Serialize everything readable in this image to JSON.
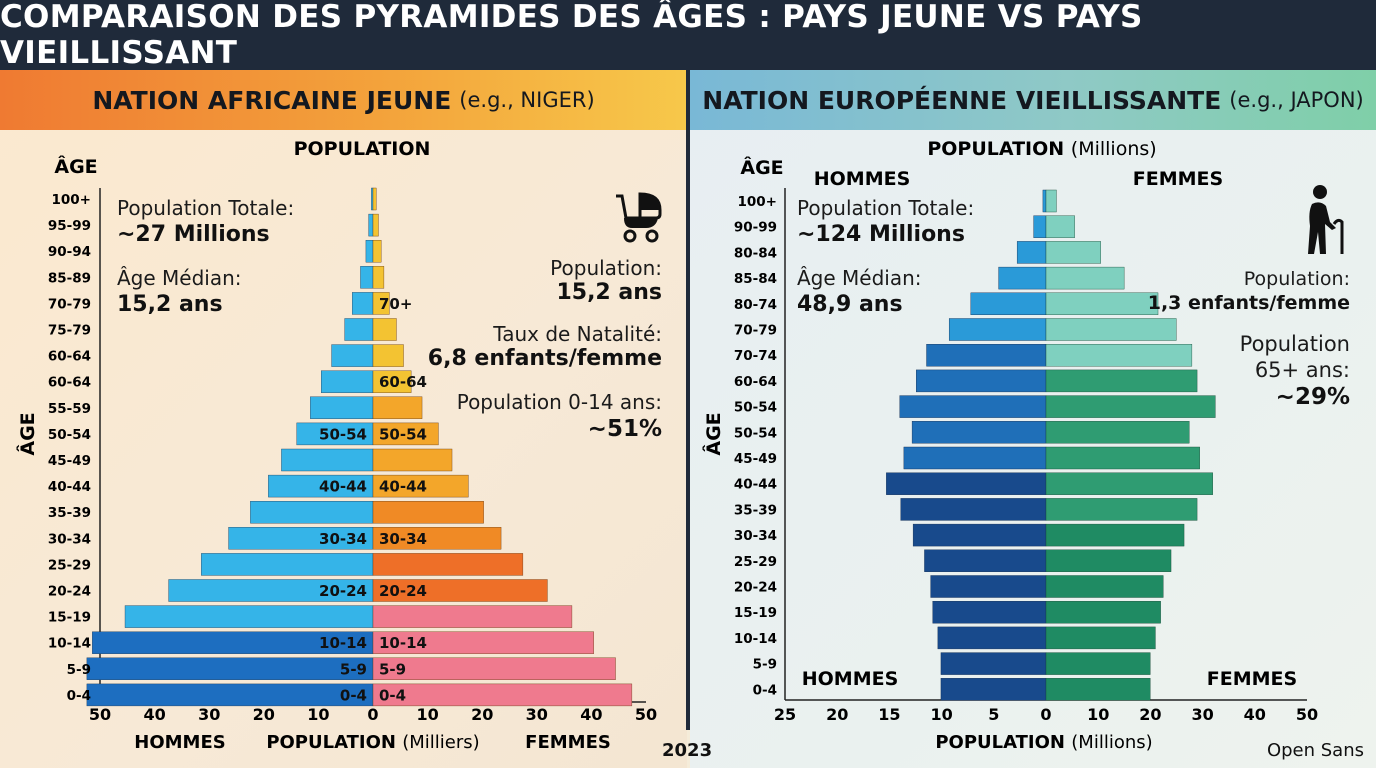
{
  "header": {
    "title": "COMPARAISON DES PYRAMIDES DES ÂGES : PAYS JEUNE VS PAYS VIEILLISSANT"
  },
  "footer": {
    "year": "2023",
    "credit": "Open Sans"
  },
  "left": {
    "title": "NATION AFRICAINE JEUNE",
    "subtitle": "(e.g., NIGER)",
    "stats": {
      "total_label": "Population Totale:",
      "total_value": "~27 Millions",
      "median_label": "Âge Médian:",
      "median_value": "15,2 ans",
      "pop_label": "Population:",
      "pop_value": "15,2 ans",
      "birth_label": "Taux de Natalité:",
      "birth_value": "6,8 enfants/femme",
      "young_label": "Population 0-14 ans:",
      "young_value": "~51%"
    },
    "icon": "baby-stroller-icon"
  },
  "right": {
    "title": "NATION EUROPÉENNE VIEILLISSANTE",
    "subtitle": "(e.g., JAPON)",
    "stats": {
      "total_label": "Population Totale:",
      "total_value": "~124 Millions",
      "median_label": "Âge Médian:",
      "median_value": "48,9 ans",
      "pop_label": "Population:",
      "pop_value": "1,3 enfants/femme",
      "old_label_1": "Population",
      "old_label_2": "65+ ans:",
      "old_value": "~29%"
    },
    "icon": "elderly-person-icon"
  },
  "chart_data": [
    {
      "type": "bar",
      "orientation": "population-pyramid",
      "title": "POPULATION",
      "xlabel_main": "POPULATION",
      "xlabel_unit": "(Milliers)",
      "ylabel": "ÂGE",
      "age_axis_title": "ÂGE",
      "left_group": "HOMMES",
      "right_group": "FEMMES",
      "xlim": [
        -50,
        50
      ],
      "xticks": [
        "50",
        "40",
        "30",
        "20",
        "10",
        "0",
        "10",
        "20",
        "30",
        "40",
        "50"
      ],
      "categories": [
        "100+",
        "95-99",
        "90-94",
        "85-89",
        "70-79",
        "75-79",
        "60-64",
        "60-64",
        "55-59",
        "50-54",
        "45-49",
        "40-44",
        "35-39",
        "30-34",
        "25-29",
        "20-24",
        "15-19",
        "10-14",
        "5-9",
        "0-4"
      ],
      "series": [
        {
          "name": "HOMMES",
          "values": [
            0.3,
            0.8,
            1.3,
            2.3,
            3.8,
            5.2,
            7.6,
            9.5,
            11.5,
            14,
            16.8,
            19.2,
            22.5,
            26.5,
            31.5,
            37.5,
            45.5,
            51.5,
            52.5,
            52.5
          ]
        },
        {
          "name": "FEMMES",
          "values": [
            0.6,
            1,
            1.5,
            2,
            3,
            4.3,
            5.6,
            7,
            9,
            12,
            14.5,
            17.5,
            20.3,
            23.5,
            27.5,
            32,
            36.5,
            40.5,
            44.5,
            47.5
          ]
        }
      ],
      "bar_labels": [
        {
          "category_index": 4,
          "side": "right",
          "text": "70+"
        },
        {
          "category_index": 7,
          "side": "right",
          "text": "60-64"
        },
        {
          "category_index": 9,
          "side": "left",
          "text": "50-54"
        },
        {
          "category_index": 9,
          "side": "right",
          "text": "50-54"
        },
        {
          "category_index": 11,
          "side": "left",
          "text": "40-44"
        },
        {
          "category_index": 11,
          "side": "right",
          "text": "40-44"
        },
        {
          "category_index": 13,
          "side": "left",
          "text": "30-34"
        },
        {
          "category_index": 13,
          "side": "right",
          "text": "30-34"
        },
        {
          "category_index": 15,
          "side": "left",
          "text": "20-24"
        },
        {
          "category_index": 15,
          "side": "right",
          "text": "20-24"
        },
        {
          "category_index": 17,
          "side": "left",
          "text": "10-14"
        },
        {
          "category_index": 17,
          "side": "right",
          "text": "10-14"
        },
        {
          "category_index": 18,
          "side": "left",
          "text": "5-9"
        },
        {
          "category_index": 18,
          "side": "right",
          "text": "5-9"
        },
        {
          "category_index": 19,
          "side": "left",
          "text": "0-4"
        },
        {
          "category_index": 19,
          "side": "right",
          "text": "0-4"
        }
      ],
      "colors": {
        "male_light": "#35b4e8",
        "male_dark": "#1d6ec0",
        "female": [
          "#f3c332",
          "#f3a62a",
          "#f08a25",
          "#ee6f28",
          "#ef7a8e"
        ]
      },
      "grid": false
    },
    {
      "type": "bar",
      "orientation": "population-pyramid",
      "title": "POPULATION",
      "title_unit": "(Millions)",
      "xlabel_main": "POPULATION",
      "xlabel_unit": "(Millions)",
      "ylabel": "ÂGE",
      "age_axis_title": "ÂGE",
      "left_group": "HOMMES",
      "right_group": "FEMMES",
      "bottom_left_group": "HOMMES",
      "bottom_right_group": "FEMMES",
      "xlim": [
        -25,
        50
      ],
      "xticks": [
        "25",
        "20",
        "15",
        "10",
        "5",
        "0",
        "10",
        "20",
        "30",
        "40",
        "50"
      ],
      "categories": [
        "100+",
        "90-99",
        "80-84",
        "85-84",
        "80-74",
        "70-79",
        "70-74",
        "60-64",
        "50-54",
        "50-54",
        "45-49",
        "40-44",
        "35-39",
        "30-34",
        "25-29",
        "20-24",
        "15-19",
        "10-14",
        "5-9",
        "0-4"
      ],
      "series": [
        {
          "name": "HOMMES",
          "values": [
            0.3,
            1.2,
            2.8,
            4.6,
            7.3,
            9.4,
            11.6,
            12.6,
            14.2,
            13,
            13.8,
            15.5,
            14.1,
            12.9,
            11.8,
            11.2,
            11,
            10.5,
            10.2,
            10.2
          ]
        },
        {
          "name": "FEMMES",
          "values": [
            2,
            5.5,
            10.5,
            15,
            21.5,
            25,
            28,
            29,
            32.5,
            27.5,
            29.5,
            32,
            29,
            26.5,
            24,
            22.5,
            22,
            21,
            20,
            20
          ]
        }
      ],
      "colors": {
        "male": [
          "#2a9ad8",
          "#1f6fb8",
          "#184a8c"
        ],
        "female": [
          "#7fd0bf",
          "#2f9c72",
          "#1f8b63"
        ]
      },
      "grid": false
    }
  ]
}
